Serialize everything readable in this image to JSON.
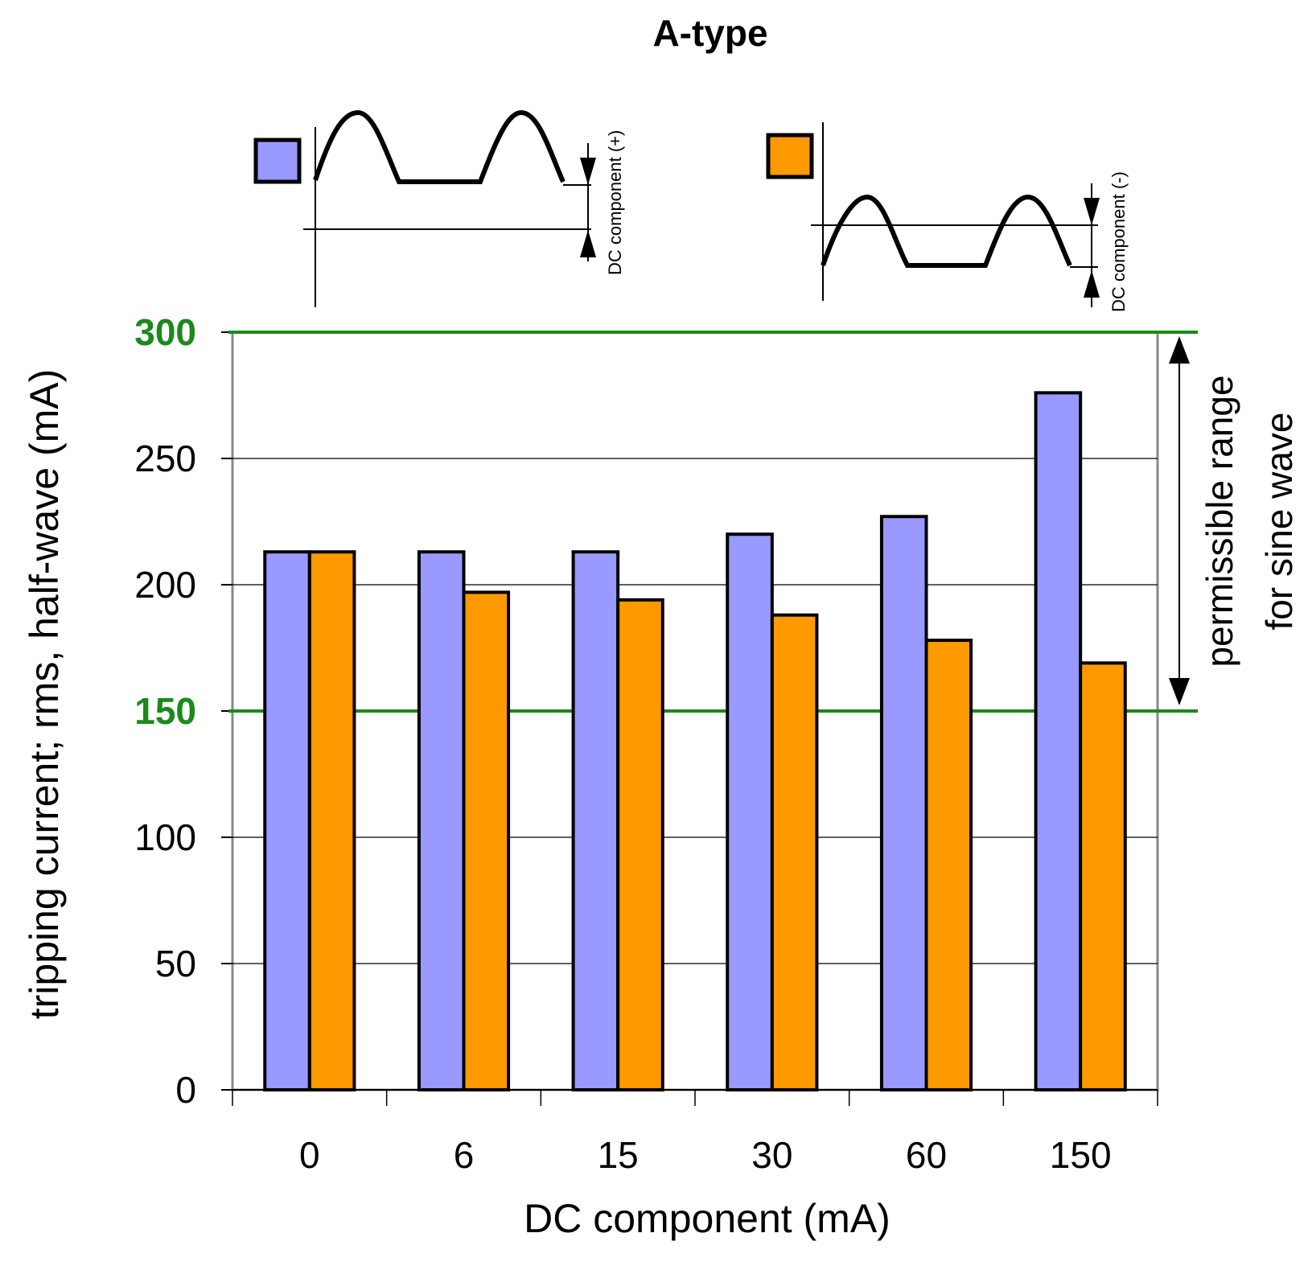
{
  "chart_data": {
    "type": "bar",
    "title": "A-type",
    "xlabel": "DC component (mA)",
    "ylabel": "tripping current; rms, half-wave (mA)",
    "ylim": [
      0,
      300
    ],
    "yticks": [
      "0",
      "50",
      "100",
      "150",
      "200",
      "250",
      "300"
    ],
    "categories": [
      "0",
      "6",
      "15",
      "30",
      "60",
      "150"
    ],
    "series": [
      {
        "name": "DC component (+)",
        "color": "#9999ff",
        "values": [
          213,
          213,
          213,
          220,
          227,
          276
        ]
      },
      {
        "name": "DC component (-)",
        "color": "#ff9900",
        "values": [
          213,
          197,
          194,
          188,
          178,
          169
        ]
      }
    ],
    "reference_lines": [
      {
        "value": 300,
        "label": "300",
        "color": "#1a8a1a"
      },
      {
        "value": 150,
        "label": "150",
        "color": "#1a8a1a"
      }
    ],
    "range_annotation": {
      "line1": "permissible range",
      "line2": "for sine wave"
    },
    "legend": [
      {
        "label": "DC component (+)",
        "color": "#9999ff"
      },
      {
        "label": "DC component (-)",
        "color": "#ff9900"
      }
    ]
  }
}
